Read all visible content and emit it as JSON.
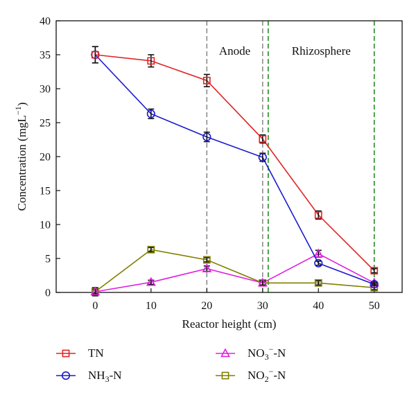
{
  "chart_data": {
    "type": "line",
    "xlabel": "Reactor height (cm)",
    "ylabel": "Concentration (mgL",
    "ylabel_sup": "−1",
    "ylabel_close": ")",
    "xlim": [
      -7,
      55
    ],
    "ylim": [
      0,
      40
    ],
    "xticks": [
      0,
      10,
      20,
      30,
      40,
      50
    ],
    "yticks": [
      0,
      5,
      10,
      15,
      20,
      25,
      30,
      35,
      40
    ],
    "x": [
      0,
      10,
      20,
      30,
      40,
      50
    ],
    "series": [
      {
        "name": "TN",
        "display": [
          "TN"
        ],
        "color": "#e02424",
        "marker": "square",
        "y": [
          35.0,
          34.1,
          31.2,
          22.6,
          11.4,
          3.2
        ],
        "err": [
          1.2,
          0.9,
          0.9,
          0.6,
          0.6,
          0.3
        ]
      },
      {
        "name": "NH3-N",
        "display": [
          "NH",
          "3",
          "-N"
        ],
        "color": "#1a1acc",
        "marker": "circle",
        "y": [
          35.0,
          26.3,
          22.9,
          19.9,
          4.3,
          1.2
        ],
        "err": [
          1.2,
          0.7,
          0.7,
          0.6,
          0.3,
          0.2
        ]
      },
      {
        "name": "NO3−-N",
        "display": [
          "NO",
          "3",
          "−",
          "-N"
        ],
        "color": "#e020e0",
        "marker": "triangle",
        "y": [
          0.1,
          1.5,
          3.5,
          1.4,
          5.7,
          1.4
        ],
        "err": [
          0.6,
          0.3,
          0.4,
          0.3,
          0.5,
          0.2
        ]
      },
      {
        "name": "NO2−-N",
        "display": [
          "NO",
          "2",
          "−",
          "-N"
        ],
        "color": "#7f7f00",
        "marker": "square",
        "y": [
          0.1,
          6.3,
          4.8,
          1.4,
          1.4,
          0.7
        ],
        "err": [
          0.3,
          0.3,
          0.3,
          0.3,
          0.3,
          0.3
        ]
      }
    ],
    "regions": [
      {
        "label": "Anode",
        "bounds": [
          20,
          30
        ],
        "color": "#8c8c8c"
      },
      {
        "label": "Rhizosphere",
        "bounds": [
          31,
          50
        ],
        "color": "#1f8f1f"
      }
    ],
    "grid": false,
    "legend": "bottom"
  }
}
